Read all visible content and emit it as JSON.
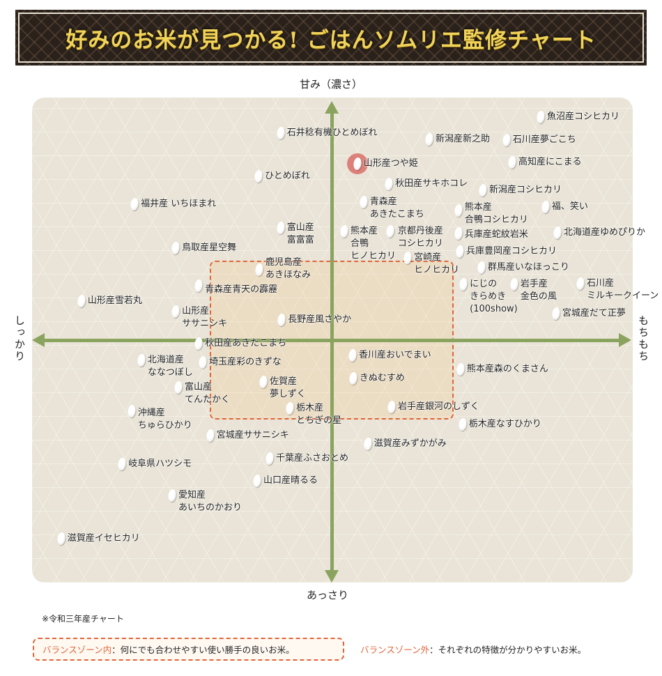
{
  "header": {
    "title": "好みのお米が見つかる! ごはんソムリエ監修チャート"
  },
  "chart_data": {
    "type": "scatter",
    "title": "好みのお米が見つかる! ごはんソムリエ監修チャート",
    "axes": {
      "top": "甘み（濃さ）",
      "bottom": "あっさり",
      "left": "しっかり",
      "right": "もちもち"
    },
    "xlim": [
      -100,
      100
    ],
    "ylim": [
      -100,
      100
    ],
    "balance_zone": {
      "x": [
        -41,
        41
      ],
      "y": [
        -33,
        33
      ]
    },
    "colors": {
      "axis": "#8aa35f",
      "zone": "#e0653a",
      "highlight": "#d75f5a"
    },
    "points": [
      {
        "label": "魚沼産コシヒカリ",
        "x": 70.1,
        "y": 93.0
      },
      {
        "label": "石井稔有機ひとめぼれ",
        "x": -17.1,
        "y": 86.3
      },
      {
        "label": "新潟産新之助",
        "x": 32.7,
        "y": 83.7
      },
      {
        "label": "石川産夢ごこち",
        "x": 58.6,
        "y": 83.4
      },
      {
        "label": "山形産つや姫",
        "x": 8.6,
        "y": 73.5,
        "highlight": true
      },
      {
        "label": "高知産にこまる",
        "x": 60.5,
        "y": 74.1
      },
      {
        "label": "ひとめぼれ",
        "x": -24.5,
        "y": 68.3
      },
      {
        "label": "秋田産サキホコレ",
        "x": 19.2,
        "y": 65.1
      },
      {
        "label": "新潟産コシヒカリ",
        "x": 50.7,
        "y": 62.5
      },
      {
        "label": "福井産 いちほまれ",
        "x": -66.1,
        "y": 56.7
      },
      {
        "label": "青森産\nあきたこまち",
        "x": 10.7,
        "y": 57.6
      },
      {
        "label": "熊本産\n合鴨コシヒカリ",
        "x": 42.5,
        "y": 54.1
      },
      {
        "label": "福、笑い",
        "x": 71.7,
        "y": 55.5
      },
      {
        "label": "富山産\n富富富",
        "x": -17.1,
        "y": 46.8
      },
      {
        "label": "熊本産\n合鴨\nヒノヒカリ",
        "x": 4.2,
        "y": 45.3
      },
      {
        "label": "京都丹後産\nコシヒカリ",
        "x": 19.6,
        "y": 45.3
      },
      {
        "label": "兵庫産蛇紋岩米",
        "x": 42.5,
        "y": 44.5
      },
      {
        "label": "北海道産ゆめぴりか",
        "x": 75.7,
        "y": 44.8
      },
      {
        "label": "鳥取産星空舞",
        "x": -52.3,
        "y": 38.4
      },
      {
        "label": "兵庫豊岡産コシヒカリ",
        "x": 43.0,
        "y": 36.9
      },
      {
        "label": "鹿児島産\nあきほなみ",
        "x": -24.3,
        "y": 29.4
      },
      {
        "label": "宮崎産\nヒノヒカリ",
        "x": 25.5,
        "y": 34.3
      },
      {
        "label": "群馬産いなほっこり",
        "x": 50.2,
        "y": 30.2
      },
      {
        "label": "青森産青天の霹靂",
        "x": -44.6,
        "y": 22.7
      },
      {
        "label": "にじの\nきらめき\n(100show)",
        "x": 44.2,
        "y": 23.3
      },
      {
        "label": "岩手産\n金色の風",
        "x": 61.2,
        "y": 23.3
      },
      {
        "label": "石川産\nミルキークイーン",
        "x": 83.4,
        "y": 23.5
      },
      {
        "label": "山形産雪若丸",
        "x": -83.9,
        "y": 16.3
      },
      {
        "label": "山形産\nササニシキ",
        "x": -52.3,
        "y": 11.9
      },
      {
        "label": "宮城産だて正夢",
        "x": 75.2,
        "y": 11.0
      },
      {
        "label": "長野産風さやか",
        "x": -16.8,
        "y": 8.4
      },
      {
        "label": "秋田産あきたこまち",
        "x": -44.6,
        "y": -1.5
      },
      {
        "label": "北海道産\nななつぼし",
        "x": -63.8,
        "y": -8.4
      },
      {
        "label": "埼玉産彩のきずな",
        "x": -43.2,
        "y": -9.3
      },
      {
        "label": "香川産おいでまい",
        "x": 7.0,
        "y": -6.4
      },
      {
        "label": "熊本産森のくまさん",
        "x": 43.2,
        "y": -12.2
      },
      {
        "label": "佐賀産\n夢しずく",
        "x": -22.9,
        "y": -17.4
      },
      {
        "label": "きぬむすめ",
        "x": 7.2,
        "y": -16.0
      },
      {
        "label": "富山産\nてんたかく",
        "x": -51.4,
        "y": -19.8
      },
      {
        "label": "沖縄産\nちゅらひかり",
        "x": -67.1,
        "y": -29.7
      },
      {
        "label": "栃木産\nとちぎの星",
        "x": -14.0,
        "y": -28.5
      },
      {
        "label": "岩手産銀河のしずく",
        "x": 20.1,
        "y": -27.9
      },
      {
        "label": "栃木産なすひかり",
        "x": 43.9,
        "y": -35.2
      },
      {
        "label": "宮城産ササニシキ",
        "x": -40.7,
        "y": -39.8
      },
      {
        "label": "滋賀産みずかがみ",
        "x": 12.1,
        "y": -43.3
      },
      {
        "label": "岐阜県ハツシモ",
        "x": -70.3,
        "y": -51.7
      },
      {
        "label": "千葉産ふさおとめ",
        "x": -20.8,
        "y": -49.4
      },
      {
        "label": "山口産晴るる",
        "x": -25.0,
        "y": -58.7
      },
      {
        "label": "愛知産\nあいちのかおり",
        "x": -53.5,
        "y": -64.8
      },
      {
        "label": "滋賀産イセヒカリ",
        "x": -90.7,
        "y": -82.8
      }
    ]
  },
  "footer": {
    "note": "※令和三年産チャート",
    "legend_in": {
      "key": "バランスゾーン内",
      "text": "：何にでも合わせやすい使い勝手の良いお米。"
    },
    "legend_out": {
      "key": "バランスゾーン外",
      "text": "：それぞれの特徴が分かりやすいお米。"
    }
  }
}
